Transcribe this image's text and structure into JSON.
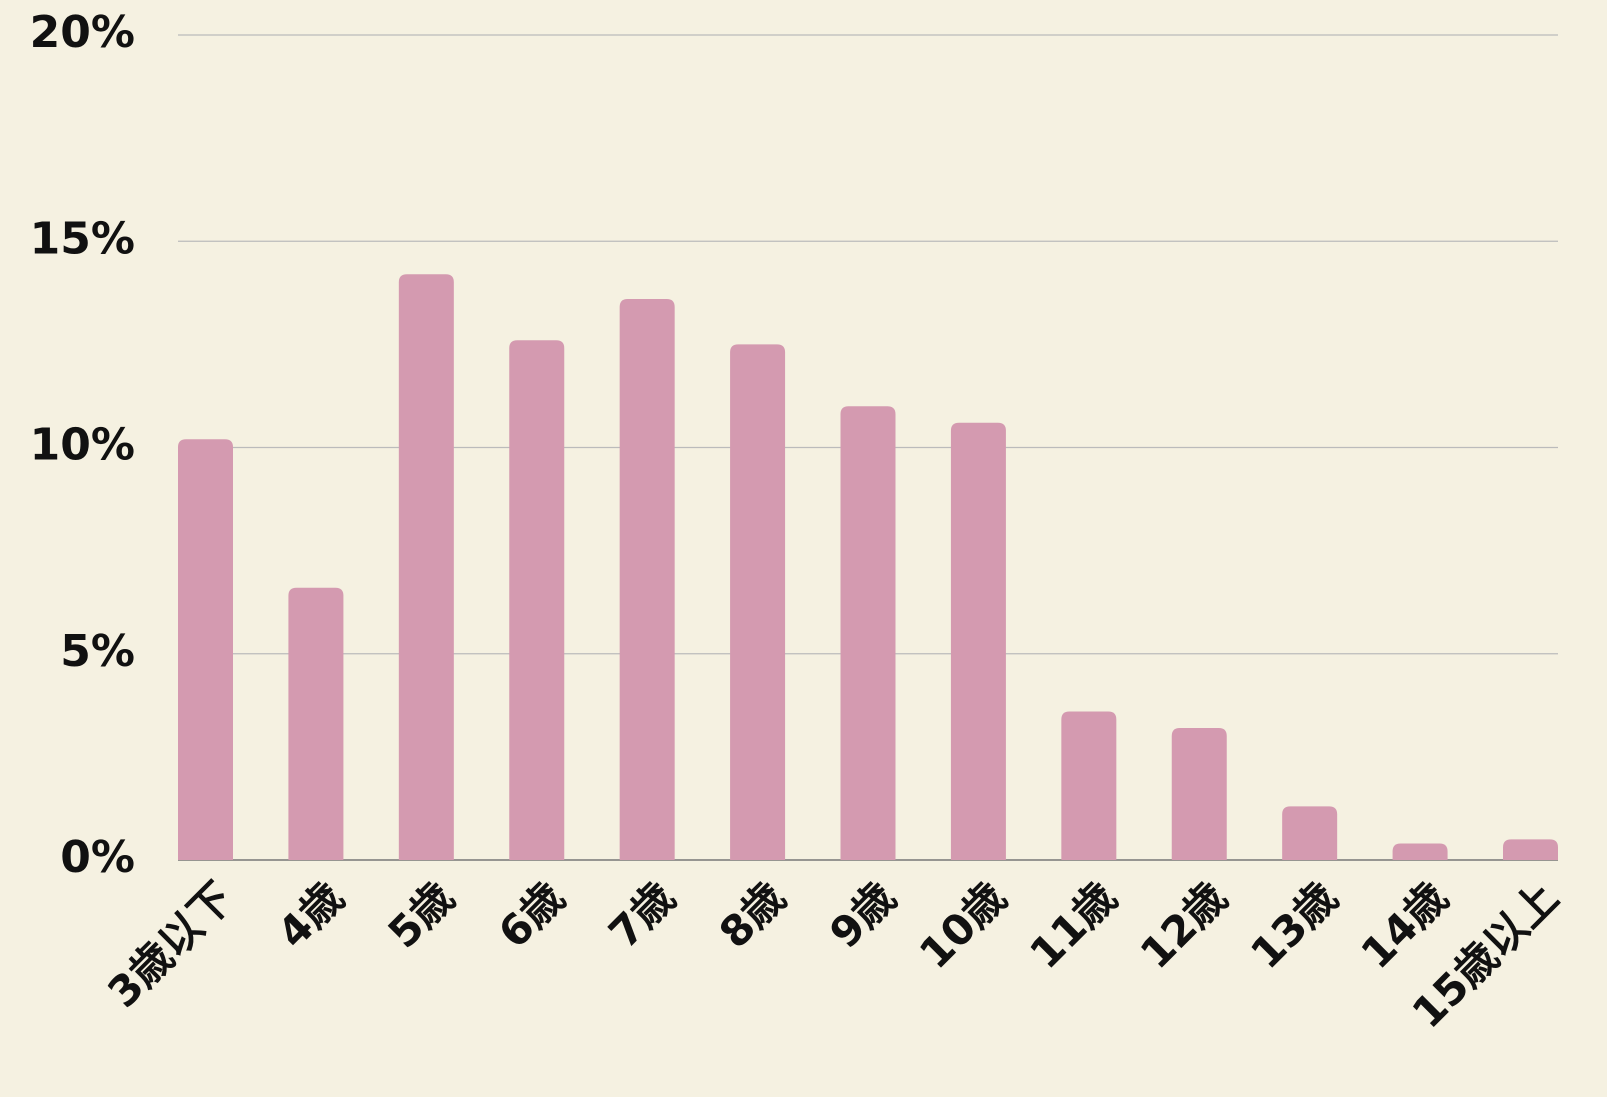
{
  "chart_data": {
    "type": "bar",
    "categories": [
      "3歳以下",
      "4歳",
      "5歳",
      "6歳",
      "7歳",
      "8歳",
      "9歳",
      "10歳",
      "11歳",
      "12歳",
      "13歳",
      "14歳",
      "15歳以上"
    ],
    "values": [
      10.2,
      6.6,
      14.2,
      12.6,
      13.6,
      12.5,
      11.0,
      10.6,
      3.6,
      3.2,
      1.3,
      0.4,
      0.5
    ],
    "color": "#d49ab0",
    "ylim": [
      0,
      20
    ],
    "yticks": [
      {
        "value": 0,
        "label": "0%"
      },
      {
        "value": 5,
        "label": "5%"
      },
      {
        "value": 10,
        "label": "10%"
      },
      {
        "value": 15,
        "label": "15%"
      },
      {
        "value": 20,
        "label": "20%"
      }
    ],
    "grid": true
  }
}
